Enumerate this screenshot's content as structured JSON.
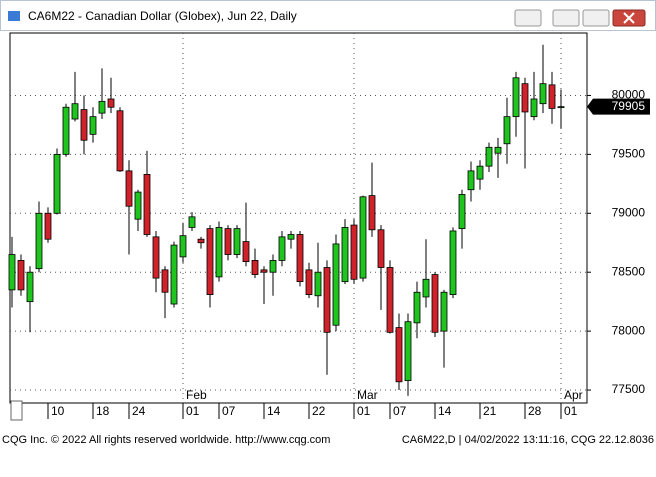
{
  "window_title": "CA6M22 - Canadian Dollar (Globex), Jun 22, Daily",
  "chart_data": {
    "type": "candlestick",
    "categories": [
      null,
      null,
      null,
      null,
      "10",
      null,
      null,
      null,
      null,
      "18",
      null,
      null,
      null,
      "24",
      null,
      null,
      null,
      null,
      null,
      "01",
      null,
      null,
      null,
      "07",
      null,
      null,
      null,
      null,
      "14",
      null,
      null,
      null,
      null,
      "22",
      null,
      null,
      null,
      null,
      "01",
      null,
      null,
      null,
      "07",
      null,
      null,
      null,
      null,
      "14",
      null,
      null,
      null,
      null,
      "21",
      null,
      null,
      null,
      null,
      "28",
      null,
      null,
      null,
      "01"
    ],
    "months": [
      null,
      null,
      null,
      null,
      null,
      null,
      null,
      null,
      null,
      null,
      null,
      null,
      null,
      null,
      null,
      null,
      null,
      null,
      null,
      "Feb",
      null,
      null,
      null,
      null,
      null,
      null,
      null,
      null,
      null,
      null,
      null,
      null,
      null,
      null,
      null,
      null,
      null,
      null,
      "Mar",
      null,
      null,
      null,
      null,
      null,
      null,
      null,
      null,
      null,
      null,
      null,
      null,
      null,
      null,
      null,
      null,
      null,
      null,
      null,
      null,
      null,
      null,
      "Apr"
    ],
    "open": [
      78350,
      78600,
      78250,
      78530,
      79000,
      79000,
      79500,
      79800,
      79880,
      79670,
      79850,
      79970,
      79870,
      79360,
      78950,
      79330,
      78800,
      78520,
      78230,
      78630,
      78880,
      78780,
      78870,
      78460,
      78870,
      78650,
      78760,
      78600,
      78520,
      78500,
      78600,
      78780,
      78820,
      78520,
      78300,
      78540,
      78050,
      78420,
      78900,
      78450,
      79150,
      78860,
      78540,
      78030,
      77580,
      78070,
      78290,
      78480,
      78000,
      78310,
      78870,
      79200,
      79290,
      79400,
      79510,
      79590,
      79820,
      80100,
      79820,
      79930,
      80090,
      79900
    ],
    "high": [
      78800,
      78650,
      78550,
      79100,
      79050,
      79550,
      79930,
      80200,
      80000,
      79900,
      80230,
      80150,
      79900,
      79450,
      79200,
      79530,
      78850,
      78550,
      78760,
      78920,
      79010,
      78800,
      78900,
      78930,
      78900,
      78900,
      79090,
      78700,
      78550,
      78650,
      78850,
      78850,
      78850,
      78580,
      78750,
      78600,
      78820,
      78950,
      78950,
      79150,
      79430,
      78900,
      78600,
      78150,
      78150,
      78420,
      78780,
      78500,
      78350,
      78880,
      79200,
      79440,
      79450,
      79600,
      79640,
      79980,
      80200,
      80150,
      80200,
      80430,
      80200,
      80050
    ],
    "low": [
      78200,
      78300,
      77990,
      78500,
      78750,
      78990,
      79480,
      79780,
      79500,
      79600,
      79800,
      79850,
      79350,
      78650,
      78850,
      78800,
      78330,
      78110,
      78200,
      78580,
      78850,
      78700,
      78200,
      78420,
      78600,
      78620,
      78550,
      78450,
      78230,
      78300,
      78550,
      78700,
      78380,
      78280,
      78200,
      77630,
      78000,
      78400,
      78400,
      78420,
      78800,
      78180,
      77980,
      77500,
      77450,
      77940,
      78200,
      77950,
      77690,
      78280,
      78700,
      79100,
      79200,
      79350,
      79300,
      79420,
      79650,
      79380,
      79790,
      79850,
      79760,
      79720
    ],
    "close": [
      78650,
      78350,
      78500,
      79000,
      78780,
      79500,
      79900,
      79930,
      79620,
      79820,
      79950,
      79900,
      79360,
      79060,
      79180,
      78820,
      78450,
      78330,
      78730,
      78810,
      78970,
      78750,
      78310,
      78880,
      78650,
      78870,
      78590,
      78480,
      78500,
      78600,
      78800,
      78820,
      78420,
      78310,
      78500,
      77990,
      78740,
      78880,
      78440,
      79140,
      78860,
      78540,
      77990,
      77570,
      78080,
      78330,
      78440,
      77990,
      78330,
      78850,
      79160,
      79360,
      79400,
      79560,
      79560,
      79820,
      80150,
      79860,
      79970,
      80100,
      79890,
      79905
    ],
    "up_color": "#1fc41f",
    "down_color": "#d0222a",
    "last_price": 79905,
    "ylim": [
      77390,
      80530
    ],
    "yticks": [
      77500,
      78000,
      78500,
      79000,
      79500,
      80000
    ],
    "grid": true
  },
  "footer": {
    "left": "CQG Inc. © 2022 All rights reserved worldwide. http://www.cqg.com",
    "right": "CA6M22,D | 04/02/2022 13:11:16, CQG 22.12.8036"
  }
}
